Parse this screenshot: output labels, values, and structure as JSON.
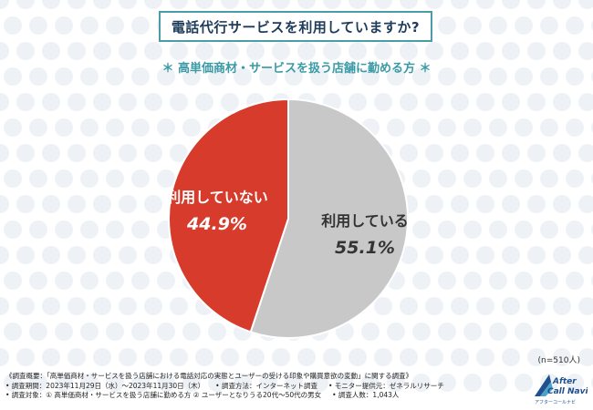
{
  "header": {
    "title": "電話代行サービスを利用していますか?",
    "subtitle": "＊ 高単価商材・サービスを扱う店舗に勤める方 ＊"
  },
  "chart_data": {
    "type": "pie",
    "categories": [
      "利用している",
      "利用していない"
    ],
    "values": [
      55.1,
      44.9
    ],
    "value_labels": [
      "55.1%",
      "44.9%"
    ],
    "colors": [
      "#c8c8c8",
      "#d63b2b"
    ],
    "label_colors": [
      "#333333",
      "#ffffff"
    ],
    "n_label": "(n=510人)"
  },
  "footer": {
    "line1": "《調査概要：「高単価商材・サービスを扱う店舗における電話対応の実態とユーザーの受ける印象や購買意欲の変動」に関する調査》",
    "line2a": "• 調査期間：2023年11月29日（水）〜2023年11月30日（木）",
    "line2b": "• 調査方法：インターネット調査",
    "line2c": "• モニター提供元：ゼネラルリサーチ",
    "line3a": "• 調査対象：① 高単価商材・サービスを扱う店舗に勤める方 ② ユーザーとなりうる20代〜50代の男女",
    "line3b": "• 調査人数：1,043人"
  },
  "logo": {
    "line1": "After",
    "line2": "Call Navi",
    "tagline": "アフターコールナビ"
  }
}
